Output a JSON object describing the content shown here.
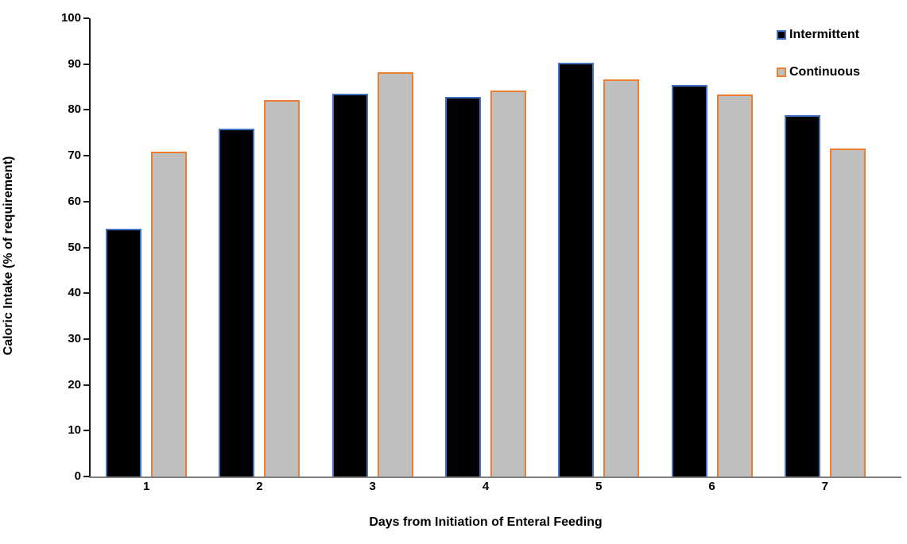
{
  "chart_data": {
    "type": "bar",
    "title": "",
    "xlabel": "Days from Initiation of Enteral Feeding",
    "ylabel": "Caloric Intake (% of requirement)",
    "categories": [
      "1",
      "2",
      "3",
      "4",
      "5",
      "6",
      "7"
    ],
    "series": [
      {
        "name": "Intermittent",
        "fill_color": "#000000",
        "border_color": "#4472C4",
        "values": [
          54.0,
          75.9,
          83.5,
          82.9,
          90.3,
          85.4,
          78.8
        ]
      },
      {
        "name": "Continuous",
        "fill_color": "#BFBFBF",
        "border_color": "#ED7D31",
        "values": [
          70.9,
          82.1,
          88.2,
          84.3,
          86.7,
          83.4,
          71.6
        ]
      }
    ],
    "ylim": [
      0,
      100
    ],
    "yticks": [
      0,
      10,
      20,
      30,
      40,
      50,
      60,
      70,
      80,
      90,
      100
    ],
    "grid": false,
    "legend_position": "top-right",
    "axis_colors": {
      "y_axis": "#1a1a1a",
      "x_axis": "#7f7f7f"
    }
  }
}
